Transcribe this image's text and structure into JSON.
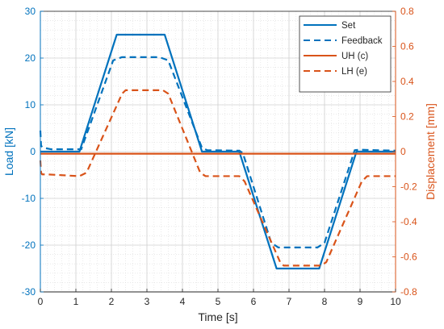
{
  "chart_data": {
    "type": "line",
    "title": "",
    "xlabel": "Time [s]",
    "ylabel_left": "Load [kN]",
    "ylabel_right": "Displacement [mm]",
    "xlim": [
      0,
      10
    ],
    "ylim_left": [
      -30,
      30
    ],
    "ylim_right": [
      -0.8,
      0.8
    ],
    "xticks": [
      0,
      1,
      2,
      3,
      4,
      5,
      6,
      7,
      8,
      9,
      10
    ],
    "yticks_left": [
      -30,
      -20,
      -10,
      0,
      10,
      20,
      30
    ],
    "yticks_right": [
      -0.8,
      -0.6,
      -0.4,
      -0.2,
      0,
      0.2,
      0.4,
      0.6,
      0.8
    ],
    "xtick_labels": [
      "0",
      "1",
      "2",
      "3",
      "4",
      "5",
      "6",
      "7",
      "8",
      "9",
      "10"
    ],
    "ytick_labels_left": [
      "-30",
      "-20",
      "-10",
      "0",
      "10",
      "20",
      "30"
    ],
    "ytick_labels_right": [
      "-0.8",
      "-0.6",
      "-0.4",
      "-0.2",
      "0",
      "0.2",
      "0.4",
      "0.6",
      "0.8"
    ],
    "grid": true,
    "legend_position": "top-right",
    "colors": {
      "left_axis": "#0072BD",
      "right_axis": "#D95319"
    },
    "series": [
      {
        "name": "Set",
        "axis": "left",
        "style": "solid",
        "color": "#0072BD",
        "x": [
          0,
          1.1,
          2.15,
          3.5,
          4.55,
          5.6,
          6.65,
          7.85,
          8.9,
          10
        ],
        "y": [
          0,
          0,
          25,
          25,
          0,
          0,
          -25,
          -25,
          0,
          0
        ]
      },
      {
        "name": "Feedback",
        "axis": "left",
        "style": "dashed",
        "color": "#0072BD",
        "x": [
          0,
          0.02,
          0.1,
          0.3,
          1.0,
          1.15,
          2.05,
          2.3,
          3.35,
          3.6,
          4.55,
          4.7,
          5.6,
          5.7,
          6.5,
          6.7,
          7.8,
          8.0,
          8.85,
          9.0,
          10
        ],
        "y": [
          4.5,
          1.2,
          0.8,
          0.5,
          0.5,
          0.5,
          19.5,
          20.2,
          20.2,
          19.5,
          0.8,
          0.3,
          0.2,
          -0.3,
          -19.5,
          -20.5,
          -20.5,
          -19.5,
          0.3,
          0.4,
          0.2
        ]
      },
      {
        "name": "UH (c)",
        "axis": "right",
        "style": "solid",
        "color": "#D95319",
        "x": [
          0,
          10
        ],
        "y": [
          -0.012,
          -0.012
        ]
      },
      {
        "name": "LH (e)",
        "axis": "right",
        "style": "dashed",
        "color": "#D95319",
        "x": [
          0,
          0.02,
          0.05,
          0.2,
          1.1,
          1.3,
          2.3,
          2.4,
          3.45,
          3.6,
          4.5,
          4.65,
          5.6,
          5.75,
          6.75,
          6.85,
          7.9,
          8.05,
          9.05,
          9.2,
          10
        ],
        "y": [
          -0.05,
          -0.12,
          -0.13,
          -0.13,
          -0.14,
          -0.12,
          0.33,
          0.35,
          0.35,
          0.33,
          -0.12,
          -0.14,
          -0.14,
          -0.17,
          -0.63,
          -0.65,
          -0.65,
          -0.63,
          -0.17,
          -0.14,
          -0.14
        ]
      }
    ]
  }
}
